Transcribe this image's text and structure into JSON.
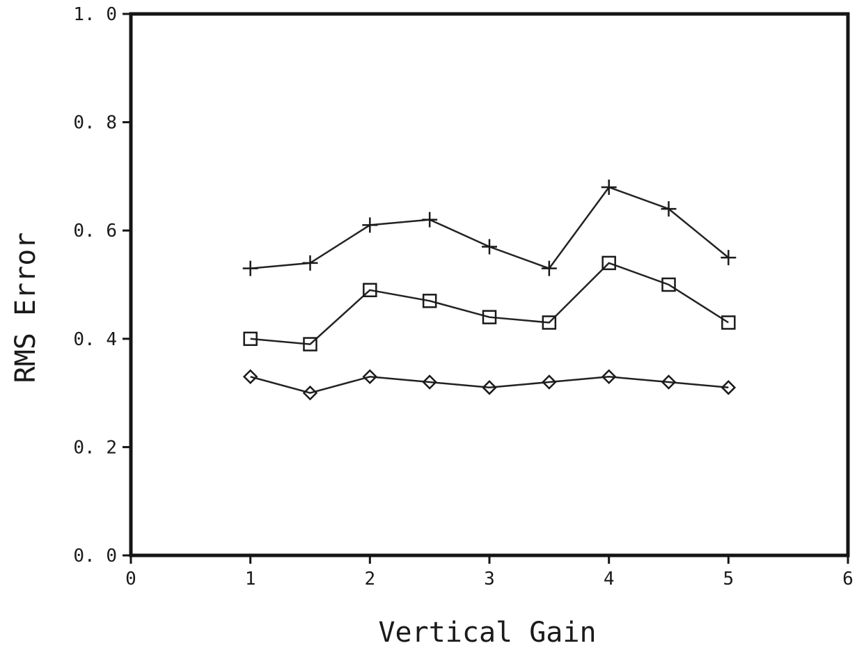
{
  "chart_data": {
    "type": "line",
    "title": "",
    "xlabel": "Vertical Gain",
    "ylabel": "RMS Error",
    "xlim": [
      0,
      6
    ],
    "ylim": [
      0.0,
      1.0
    ],
    "xticks": [
      0,
      1,
      2,
      3,
      4,
      5,
      6
    ],
    "xtick_labels": [
      "0",
      "1",
      "2",
      "3",
      "4",
      "5",
      "6"
    ],
    "yticks": [
      0.0,
      0.2,
      0.4,
      0.6,
      0.8,
      1.0
    ],
    "ytick_labels": [
      "0. 0",
      "0. 2",
      "0. 4",
      "0. 6",
      "0. 8",
      "1. 0"
    ],
    "grid": false,
    "x": [
      1,
      1.5,
      2,
      2.5,
      3,
      3.5,
      4,
      4.5,
      5
    ],
    "series": [
      {
        "marker": "plus",
        "values": [
          0.53,
          0.54,
          0.61,
          0.62,
          0.57,
          0.53,
          0.68,
          0.64,
          0.55
        ]
      },
      {
        "marker": "square",
        "values": [
          0.4,
          0.39,
          0.49,
          0.47,
          0.44,
          0.43,
          0.54,
          0.5,
          0.43
        ]
      },
      {
        "marker": "diamond",
        "values": [
          0.33,
          0.3,
          0.33,
          0.32,
          0.31,
          0.32,
          0.33,
          0.32,
          0.31
        ]
      }
    ]
  }
}
